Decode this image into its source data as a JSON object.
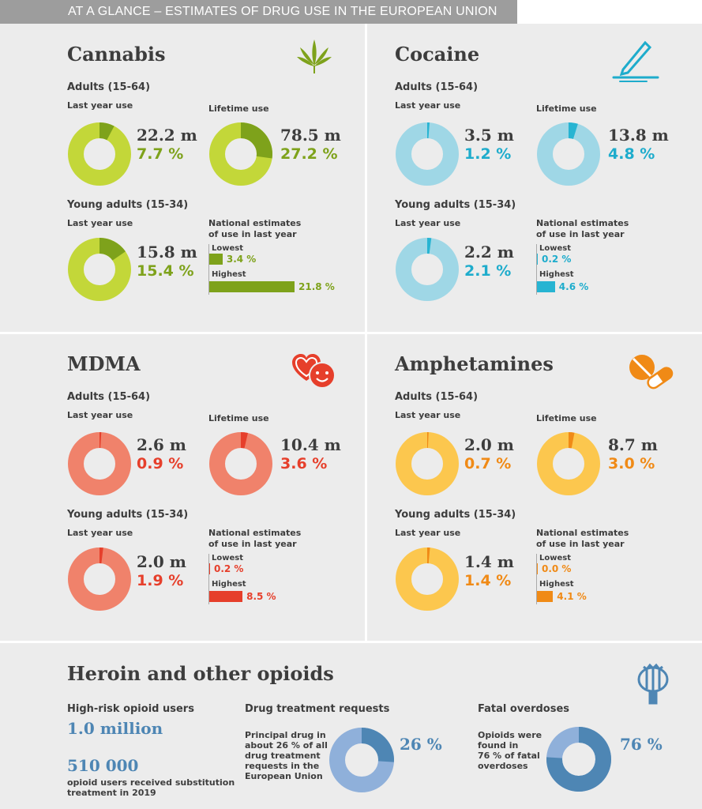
{
  "header": "AT A GLANCE – ESTIMATES OF DRUG USE IN THE EUROPEAN UNION",
  "labels": {
    "adults": "Adults (15-64)",
    "young": "Young adults (15-34)",
    "last_year": "Last year use",
    "lifetime": "Lifetime use",
    "national_1": "National estimates",
    "national_2": "of use in last year",
    "lowest": "Lowest",
    "highest": "Highest"
  },
  "colors": {
    "cannabis": {
      "light": "#c3d739",
      "dark": "#7ea21b",
      "text": "#7ea21b"
    },
    "cocaine": {
      "light": "#9fd7e6",
      "dark": "#27b4d2",
      "text": "#1eaccc"
    },
    "mdma": {
      "light": "#f0826b",
      "dark": "#e63f2b",
      "text": "#e63f2b"
    },
    "amphetamines": {
      "light": "#fcc74e",
      "dark": "#f08a16",
      "text": "#f08a16"
    },
    "opioids": {
      "light": "#8fb0da",
      "dark": "#4e86b4",
      "text": "#4e86b4"
    }
  },
  "drugs": {
    "cannabis": {
      "title": "Cannabis",
      "icon": "cannabis-leaf-icon",
      "adult_last": {
        "count": "22.2 m",
        "pct_label": "7.7 %"
      },
      "adult_life": {
        "count": "78.5 m",
        "pct_label": "27.2 %"
      },
      "young_last": {
        "count": "15.8 m",
        "pct_label": "15.4 %"
      },
      "nat_lowest": "3.4 %",
      "nat_highest": "21.8 %"
    },
    "cocaine": {
      "title": "Cocaine",
      "icon": "cocaine-line-icon",
      "adult_last": {
        "count": "3.5 m",
        "pct_label": "1.2 %"
      },
      "adult_life": {
        "count": "13.8 m",
        "pct_label": "4.8 %"
      },
      "young_last": {
        "count": "2.2 m",
        "pct_label": "2.1 %"
      },
      "nat_lowest": "0.2 %",
      "nat_highest": "4.6 %"
    },
    "mdma": {
      "title": "MDMA",
      "icon": "smiley-heart-icon",
      "adult_last": {
        "count": "2.6 m",
        "pct_label": "0.9 %"
      },
      "adult_life": {
        "count": "10.4 m",
        "pct_label": "3.6 %"
      },
      "young_last": {
        "count": "2.0 m",
        "pct_label": "1.9 %"
      },
      "nat_lowest": "0.2 %",
      "nat_highest": "8.5 %"
    },
    "amphetamines": {
      "title": "Amphetamines",
      "icon": "pill-icon",
      "adult_last": {
        "count": "2.0 m",
        "pct_label": "0.7 %"
      },
      "adult_life": {
        "count": "8.7 m",
        "pct_label": "3.0 %"
      },
      "young_last": {
        "count": "1.4 m",
        "pct_label": "1.4 %"
      },
      "nat_lowest": "0.0 %",
      "nat_highest": "4.1 %"
    }
  },
  "opioids": {
    "title": "Heroin and other opioids",
    "icon": "poppy-icon",
    "high_risk_label": "High-risk opioid users",
    "high_risk_value": "1.0 million",
    "substitution_value": "510 000",
    "substitution_text_1": "opioid users received substitution",
    "substitution_text_2": "treatment in 2019",
    "treatment_label": "Drug treatment requests",
    "treatment_text": [
      "Principal drug in",
      "about 26 % of all",
      "drug treatment",
      "requests in the",
      "European Union"
    ],
    "treatment_pct": "26 %",
    "overdose_label": "Fatal overdoses",
    "overdose_text": [
      "Opioids were",
      "found in",
      "76 % of fatal",
      "overdoses"
    ],
    "overdose_pct": "76 %"
  },
  "chart_data": [
    {
      "type": "pie",
      "title": "Cannabis",
      "series": [
        {
          "name": "Adults (15-64) Last year use",
          "values": [
            7.7
          ],
          "count": "22.2 m"
        },
        {
          "name": "Adults (15-64) Lifetime use",
          "values": [
            27.2
          ],
          "count": "78.5 m"
        },
        {
          "name": "Young adults (15-34) Last year use",
          "values": [
            15.4
          ],
          "count": "15.8 m"
        }
      ],
      "national_estimates": {
        "lowest": 3.4,
        "highest": 21.8
      }
    },
    {
      "type": "pie",
      "title": "Cocaine",
      "series": [
        {
          "name": "Adults (15-64) Last year use",
          "values": [
            1.2
          ],
          "count": "3.5 m"
        },
        {
          "name": "Adults (15-64) Lifetime use",
          "values": [
            4.8
          ],
          "count": "13.8 m"
        },
        {
          "name": "Young adults (15-34) Last year use",
          "values": [
            2.1
          ],
          "count": "2.2 m"
        }
      ],
      "national_estimates": {
        "lowest": 0.2,
        "highest": 4.6
      }
    },
    {
      "type": "pie",
      "title": "MDMA",
      "series": [
        {
          "name": "Adults (15-64) Last year use",
          "values": [
            0.9
          ],
          "count": "2.6 m"
        },
        {
          "name": "Adults (15-64) Lifetime use",
          "values": [
            3.6
          ],
          "count": "10.4 m"
        },
        {
          "name": "Young adults (15-34) Last year use",
          "values": [
            1.9
          ],
          "count": "2.0 m"
        }
      ],
      "national_estimates": {
        "lowest": 0.2,
        "highest": 8.5
      }
    },
    {
      "type": "pie",
      "title": "Amphetamines",
      "series": [
        {
          "name": "Adults (15-64) Last year use",
          "values": [
            0.7
          ],
          "count": "2.0 m"
        },
        {
          "name": "Adults (15-64) Lifetime use",
          "values": [
            3.0
          ],
          "count": "8.7 m"
        },
        {
          "name": "Young adults (15-34) Last year use",
          "values": [
            1.4
          ],
          "count": "1.4 m"
        }
      ],
      "national_estimates": {
        "lowest": 0.0,
        "highest": 4.1
      }
    },
    {
      "type": "pie",
      "title": "Heroin and other opioids",
      "series": [
        {
          "name": "Drug treatment requests",
          "values": [
            26
          ]
        },
        {
          "name": "Fatal overdoses",
          "values": [
            76
          ]
        }
      ]
    }
  ]
}
